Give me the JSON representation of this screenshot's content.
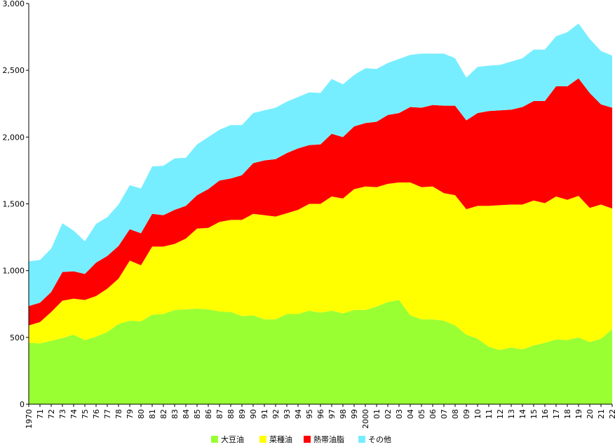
{
  "chart_data": {
    "type": "area",
    "stacked": true,
    "title": "",
    "xlabel": "",
    "ylabel": "",
    "ylim": [
      0,
      3000
    ],
    "yticks": [
      0,
      500,
      1000,
      1500,
      2000,
      2500,
      3000
    ],
    "ytick_labels": [
      "0",
      "500",
      "1,000",
      "1,500",
      "2,000",
      "2,500",
      "3,000"
    ],
    "grid": false,
    "legend_position": "bottom",
    "categories": [
      "1970",
      "71",
      "72",
      "73",
      "74",
      "75",
      "76",
      "77",
      "78",
      "79",
      "80",
      "81",
      "82",
      "83",
      "84",
      "85",
      "86",
      "87",
      "88",
      "89",
      "90",
      "91",
      "92",
      "93",
      "94",
      "95",
      "96",
      "97",
      "98",
      "99",
      "2000",
      "01",
      "02",
      "03",
      "04",
      "05",
      "06",
      "07",
      "08",
      "09",
      "10",
      "11",
      "12",
      "13",
      "14",
      "15",
      "16",
      "17",
      "18",
      "19",
      "20",
      "21",
      "22"
    ],
    "series": [
      {
        "name": "大豆油",
        "color": "#99ff33",
        "values": [
          460,
          455,
          475,
          495,
          520,
          480,
          505,
          540,
          600,
          625,
          620,
          670,
          675,
          705,
          710,
          715,
          710,
          695,
          690,
          660,
          665,
          635,
          635,
          675,
          675,
          700,
          685,
          700,
          680,
          705,
          705,
          730,
          765,
          780,
          665,
          635,
          635,
          625,
          590,
          520,
          490,
          430,
          405,
          425,
          410,
          440,
          460,
          485,
          480,
          500,
          465,
          490,
          560
        ]
      },
      {
        "name": "菜種油",
        "color": "#ffff00",
        "values": [
          130,
          160,
          215,
          280,
          270,
          300,
          305,
          325,
          340,
          450,
          420,
          510,
          505,
          495,
          530,
          600,
          610,
          670,
          690,
          720,
          760,
          780,
          770,
          755,
          780,
          800,
          815,
          855,
          860,
          905,
          925,
          895,
          885,
          880,
          995,
          990,
          995,
          955,
          975,
          940,
          995,
          1055,
          1085,
          1070,
          1085,
          1085,
          1045,
          1070,
          1050,
          1060,
          1005,
          1005,
          905
        ]
      },
      {
        "name": "熱帯油脂",
        "color": "#ff0000",
        "values": [
          145,
          145,
          150,
          215,
          205,
          195,
          250,
          245,
          245,
          235,
          240,
          245,
          235,
          255,
          245,
          250,
          290,
          310,
          310,
          335,
          380,
          410,
          430,
          450,
          460,
          440,
          445,
          470,
          460,
          470,
          475,
          490,
          515,
          520,
          565,
          595,
          610,
          655,
          670,
          665,
          695,
          710,
          710,
          710,
          730,
          745,
          765,
          825,
          850,
          880,
          860,
          750,
          755
        ]
      },
      {
        "name": "その他",
        "color": "#77eeff",
        "values": [
          335,
          320,
          325,
          365,
          305,
          245,
          290,
          290,
          310,
          330,
          335,
          355,
          370,
          385,
          360,
          380,
          390,
          380,
          400,
          375,
          375,
          375,
          385,
          385,
          385,
          395,
          385,
          410,
          395,
          385,
          410,
          395,
          390,
          405,
          390,
          405,
          385,
          390,
          355,
          320,
          345,
          340,
          340,
          360,
          365,
          385,
          385,
          375,
          405,
          410,
          405,
          400,
          390
        ]
      }
    ],
    "legend": [
      "大豆油",
      "菜種油",
      "熱帯油脂",
      "その他"
    ]
  }
}
